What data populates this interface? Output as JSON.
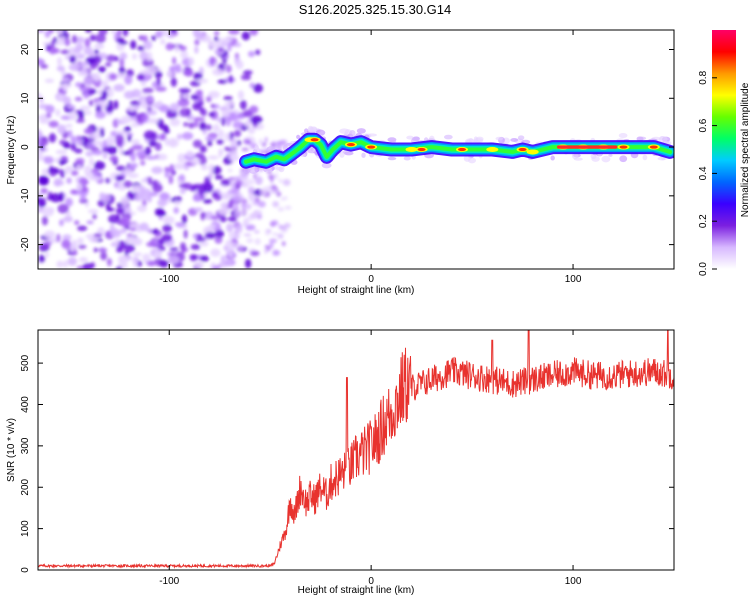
{
  "title": "S126.2025.325.15.30.G14",
  "chart_data": [
    {
      "type": "heatmap",
      "title": "S126.2025.325.15.30.G14",
      "xlabel": "Height of straight line (km)",
      "ylabel": "Frequency (Hz)",
      "xlim": [
        -165,
        150
      ],
      "ylim": [
        -25,
        24
      ],
      "xticks": [
        -100,
        0,
        100
      ],
      "yticks": [
        -20,
        -10,
        0,
        10,
        20
      ],
      "xtick_labels": [
        "-100",
        "0",
        "100"
      ],
      "ytick_labels": [
        "-20",
        "-10",
        "0",
        "10",
        "20"
      ],
      "noise_region": {
        "x": [
          -165,
          -60
        ],
        "y": [
          -25,
          24
        ]
      },
      "ridge": {
        "x": [
          -62,
          -58,
          -52,
          -47,
          -43,
          -38,
          -35,
          -31,
          -28,
          -25,
          -22,
          -19,
          -15,
          -10,
          -5,
          0,
          10,
          20,
          30,
          40,
          50,
          60,
          70,
          75,
          80,
          90,
          100,
          110,
          120,
          130,
          140,
          148
        ],
        "y": [
          -3,
          -2.5,
          -3,
          -2,
          -2.5,
          -1,
          0,
          1.5,
          1.5,
          0.5,
          -2,
          -0.5,
          1,
          0.5,
          1,
          0,
          -0.5,
          -0.5,
          0,
          -0.5,
          -0.5,
          -0.5,
          -1,
          -0.5,
          -1,
          0,
          0,
          0,
          0,
          0,
          0,
          -1
        ]
      },
      "colorbar": {
        "label": "Normalized spectral amplitude",
        "range": [
          0,
          1
        ],
        "ticks": [
          0.0,
          0.2,
          0.4,
          0.6,
          0.8
        ],
        "tick_labels": [
          "0.0",
          "0.2",
          "0.4",
          "0.6",
          "0.8"
        ],
        "colors": [
          "#ffffff",
          "#d7b8ff",
          "#7b1fe0",
          "#3a00ff",
          "#0066ff",
          "#00ccff",
          "#00ff66",
          "#66ff00",
          "#ffff00",
          "#ff9900",
          "#ff0000",
          "#ff0066"
        ]
      }
    },
    {
      "type": "line",
      "xlabel": "Height of straight line (km)",
      "ylabel": "SNR (10 * v/v)",
      "xlim": [
        -165,
        150
      ],
      "ylim": [
        0,
        580
      ],
      "xticks": [
        -100,
        0,
        100
      ],
      "yticks": [
        0,
        100,
        200,
        300,
        400,
        500
      ],
      "xtick_labels": [
        "-100",
        "0",
        "100"
      ],
      "ytick_labels": [
        "0",
        "100",
        "200",
        "300",
        "400",
        "500"
      ],
      "color": "#e8322e",
      "series": [
        {
          "name": "SNR",
          "x": [
            -165,
            -120,
            -80,
            -50,
            -48,
            -45,
            -42,
            -40,
            -38,
            -35,
            -32,
            -30,
            -28,
            -25,
            -22,
            -20,
            -18,
            -15,
            -12,
            -10,
            -8,
            -5,
            -2,
            0,
            3,
            6,
            10,
            13,
            16,
            18,
            20,
            25,
            30,
            40,
            50,
            60,
            70,
            80,
            90,
            100,
            110,
            120,
            130,
            140,
            150
          ],
          "values": [
            10,
            10,
            10,
            10,
            15,
            60,
            100,
            170,
            130,
            200,
            160,
            180,
            170,
            200,
            180,
            210,
            220,
            230,
            240,
            250,
            270,
            280,
            290,
            300,
            320,
            350,
            380,
            410,
            440,
            450,
            440,
            450,
            460,
            480,
            470,
            460,
            450,
            460,
            470,
            480,
            470,
            470,
            475,
            480,
            470
          ]
        }
      ],
      "spikes": {
        "x": [
          -12,
          -8,
          60,
          78,
          147
        ],
        "values": [
          465,
          290,
          555,
          580,
          580
        ]
      }
    }
  ]
}
